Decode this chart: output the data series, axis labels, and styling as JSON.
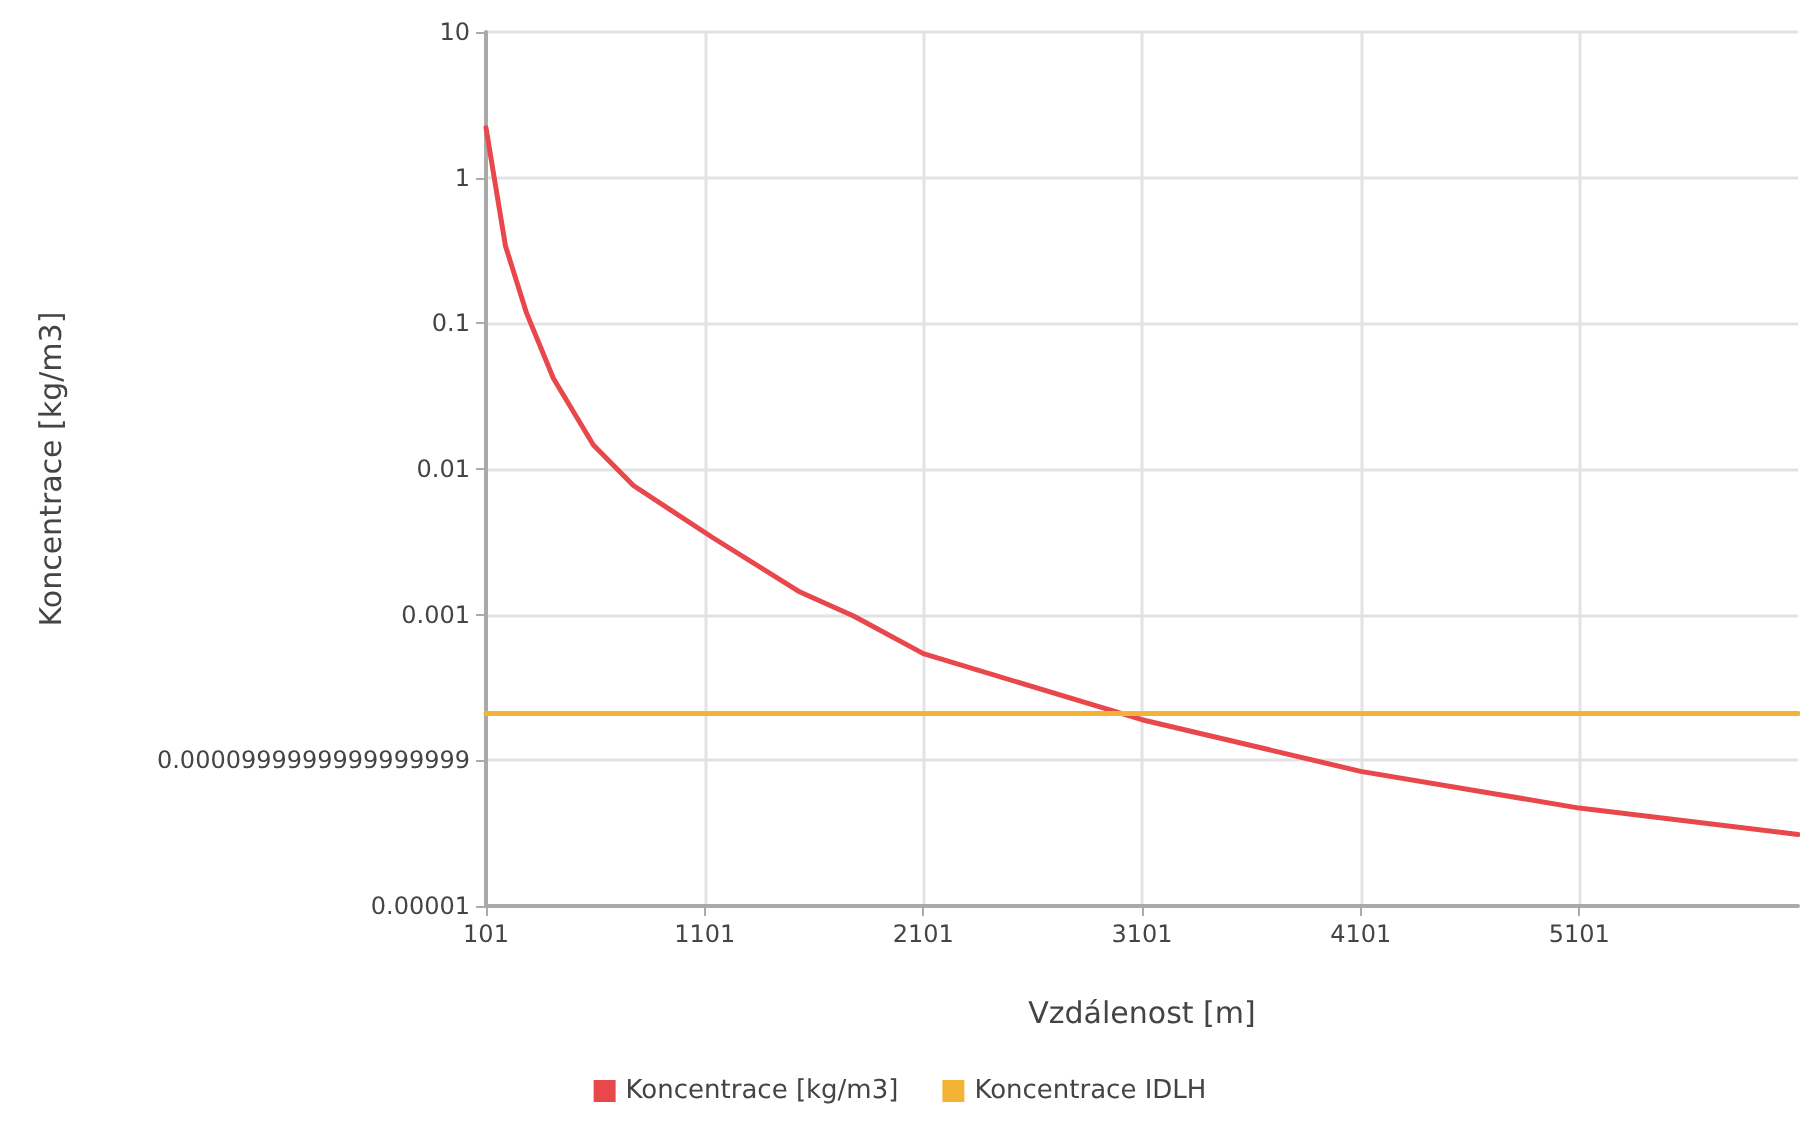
{
  "chart_data": {
    "type": "line",
    "xlabel": "Vzdálenost [m]",
    "ylabel": "Koncentrace [kg/m3]",
    "xlim": [
      101,
      6101
    ],
    "xticks": [
      101,
      1101,
      2101,
      3101,
      4101,
      5101
    ],
    "ylim": [
      1e-05,
      10
    ],
    "yticks": [
      {
        "value": 1e-05,
        "label": "0.00001"
      },
      {
        "value": 0.0001,
        "label": "0.0000999999999999999"
      },
      0.001,
      0.01,
      0.1,
      1,
      10
    ],
    "log": "y",
    "grid": true,
    "legend": "bottom",
    "marker": "none",
    "line_style": "solid",
    "series": [
      {
        "name": "Koncentrace [kg/m3]",
        "color": "#e8474c",
        "x": [
          101,
          190,
          287,
          409,
          592,
          775,
          1135,
          1537,
          1782,
          2101,
          3101,
          4101,
          5101,
          6101
        ],
        "values": [
          2.2,
          0.34,
          0.117,
          0.042,
          0.0146,
          0.0077,
          0.0034,
          0.00143,
          0.00098,
          0.00054,
          0.00019,
          8.4e-05,
          4.7e-05,
          3.1e-05
        ]
      },
      {
        "name": "Koncentrace IDLH",
        "color": "#f5b335",
        "x": [
          101,
          6101
        ],
        "values": [
          0.00021,
          0.00021
        ]
      }
    ]
  }
}
